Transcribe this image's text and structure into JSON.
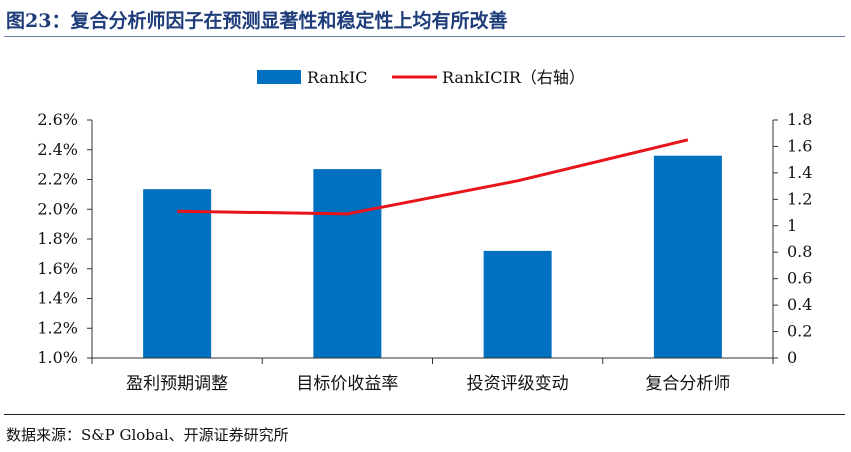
{
  "header": {
    "title": "图23：复合分析师因子在预测显著性和稳定性上均有所改善"
  },
  "footer": {
    "source": "数据来源：S&P Global、开源证券研究所"
  },
  "chart_data": {
    "type": "bar",
    "categories": [
      "盈利预期调整",
      "目标价收益率",
      "投资评级变动",
      "复合分析师"
    ],
    "series": [
      {
        "name": "RankIC",
        "type": "bar",
        "axis": "left",
        "color": "#0070c0",
        "values": [
          2.135,
          2.27,
          1.72,
          2.36
        ]
      },
      {
        "name": "RankICIR（右轴）",
        "type": "line",
        "axis": "right",
        "color": "#e8141c",
        "values": [
          1.11,
          1.09,
          1.34,
          1.65
        ]
      }
    ],
    "y_left": {
      "min": 1.0,
      "max": 2.6,
      "ticks": [
        "1.0%",
        "1.2%",
        "1.4%",
        "1.6%",
        "1.8%",
        "2.0%",
        "2.2%",
        "2.4%",
        "2.6%"
      ]
    },
    "y_right": {
      "min": 0,
      "max": 1.8,
      "ticks": [
        "0",
        "0.2",
        "0.4",
        "0.6",
        "0.8",
        "1",
        "1.2",
        "1.4",
        "1.6",
        "1.8"
      ]
    },
    "legend": "top-center",
    "grid": false
  }
}
